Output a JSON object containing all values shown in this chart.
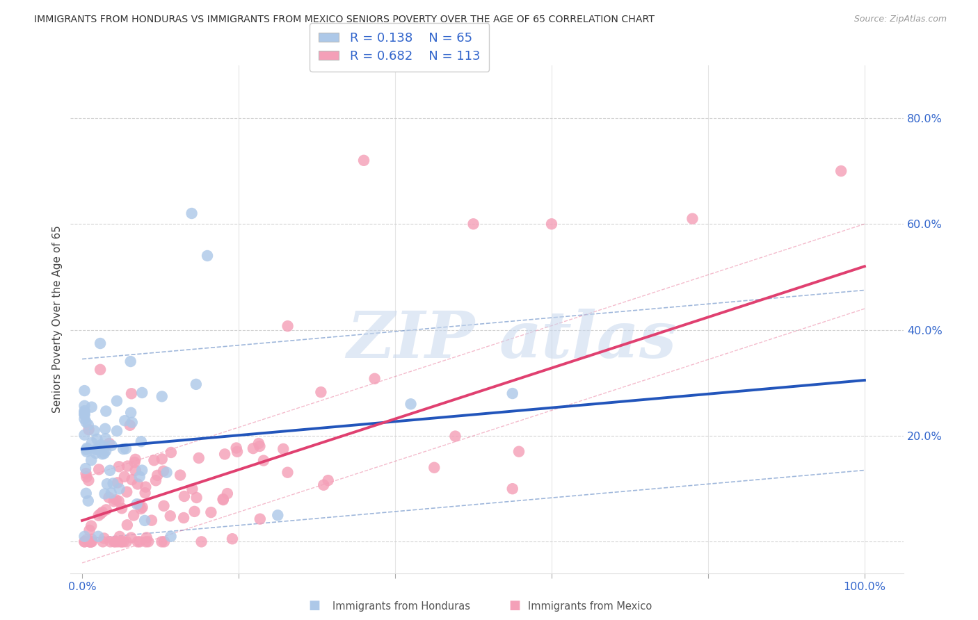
{
  "title": "IMMIGRANTS FROM HONDURAS VS IMMIGRANTS FROM MEXICO SENIORS POVERTY OVER THE AGE OF 65 CORRELATION CHART",
  "source": "Source: ZipAtlas.com",
  "ylabel": "Seniors Poverty Over the Age of 65",
  "xlim": [
    -0.015,
    1.05
  ],
  "ylim": [
    -0.06,
    0.9
  ],
  "xticks": [
    0.0,
    0.2,
    0.4,
    0.6,
    0.8,
    1.0
  ],
  "xticklabels": [
    "0.0%",
    "",
    "",
    "",
    "",
    "100.0%"
  ],
  "yticks_right": [
    0.2,
    0.4,
    0.6,
    0.8
  ],
  "yticklabels_right": [
    "20.0%",
    "40.0%",
    "60.0%",
    "80.0%"
  ],
  "honduras_color": "#adc8e8",
  "mexico_color": "#f4a0b8",
  "honduras_line_color": "#2255bb",
  "mexico_line_color": "#e04070",
  "ci_line_color": "#7799cc",
  "honduras_R": 0.138,
  "honduras_N": 65,
  "mexico_R": 0.682,
  "mexico_N": 113,
  "grid_color": "#cccccc",
  "watermark_color": "#c8d8ee",
  "tick_color": "#3366cc",
  "title_color": "#333333",
  "source_color": "#999999",
  "legend_text_color": "#333333",
  "legend_value_color": "#3366cc",
  "bottom_label_color": "#555555"
}
